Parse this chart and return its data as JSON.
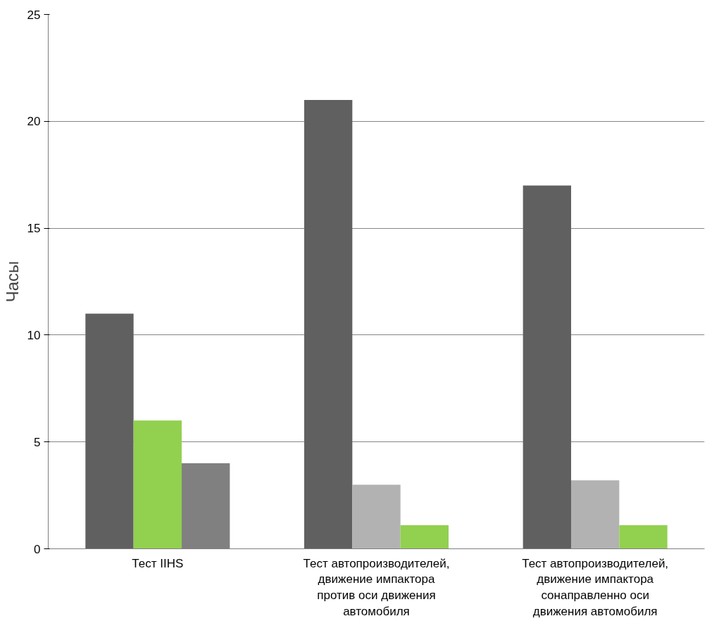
{
  "chart_data": {
    "type": "bar",
    "ylabel": "Часы",
    "categories": [
      "Тест IIHS",
      "Тест автопроизводителей,\nдвижение импактора\nпротив оси движения\nавтомобиля",
      "Тест автопроизводителей,\nдвижение импактора\nсонаправленно оси\nдвижения автомобиля"
    ],
    "series": [
      {
        "colors": [
          "#606060",
          "#606060",
          "#606060"
        ],
        "values": [
          11,
          21,
          17
        ]
      },
      {
        "colors": [
          "#92d050",
          "#b2b2b2",
          "#b2b2b2"
        ],
        "values": [
          6,
          3,
          3.2
        ]
      },
      {
        "colors": [
          "#808080",
          "#92d050",
          "#92d050"
        ],
        "values": [
          4,
          1.1,
          1.1
        ]
      }
    ],
    "ylim": [
      0,
      25
    ],
    "yticks": [
      0,
      5,
      10,
      15,
      20,
      25
    ],
    "grid": "y"
  }
}
